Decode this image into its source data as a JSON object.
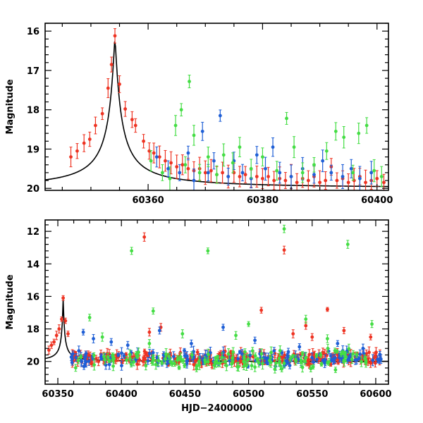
{
  "chart_data": [
    {
      "type": "scatter",
      "title": "",
      "xlabel": "",
      "ylabel": "Magnitude",
      "xlim": [
        60342,
        60402
      ],
      "ylim": [
        20.05,
        15.8
      ],
      "y_inverted": true,
      "xticks": [
        60360,
        60380,
        60400
      ],
      "yticks": [
        16,
        17,
        18,
        19,
        20
      ],
      "grid": false,
      "model_curve": {
        "name": "",
        "peak_x": 60354.2,
        "peak_y": 16.15,
        "baseline_y": 20.0,
        "color": "#000000"
      },
      "series": [
        {
          "name": "",
          "color": "#ee3322",
          "points": [
            {
              "x": 60346.5,
              "y": 19.2
            },
            {
              "x": 60347.6,
              "y": 19.05
            },
            {
              "x": 60348.8,
              "y": 18.85
            },
            {
              "x": 60349.8,
              "y": 18.75
            },
            {
              "x": 60350.8,
              "y": 18.4
            },
            {
              "x": 60352.0,
              "y": 18.1
            },
            {
              "x": 60353.0,
              "y": 17.45
            },
            {
              "x": 60353.6,
              "y": 16.85
            },
            {
              "x": 60354.2,
              "y": 16.12
            },
            {
              "x": 60355.0,
              "y": 17.35
            },
            {
              "x": 60356.0,
              "y": 17.98
            },
            {
              "x": 60357.2,
              "y": 18.25
            },
            {
              "x": 60357.8,
              "y": 18.4
            },
            {
              "x": 60359.2,
              "y": 18.8
            },
            {
              "x": 60360.2,
              "y": 19.05
            },
            {
              "x": 60361.0,
              "y": 19.1
            },
            {
              "x": 60362.0,
              "y": 19.2
            },
            {
              "x": 60363.0,
              "y": 19.3
            },
            {
              "x": 60364.0,
              "y": 19.35
            },
            {
              "x": 60365.0,
              "y": 19.45
            },
            {
              "x": 60366.0,
              "y": 19.4
            },
            {
              "x": 60367.0,
              "y": 19.5
            },
            {
              "x": 60368.0,
              "y": 19.55
            },
            {
              "x": 60369.0,
              "y": 19.5
            },
            {
              "x": 60370.0,
              "y": 19.6
            },
            {
              "x": 60371.0,
              "y": 19.55
            },
            {
              "x": 60372.0,
              "y": 19.65
            },
            {
              "x": 60373.0,
              "y": 19.6
            },
            {
              "x": 60374.0,
              "y": 19.7
            },
            {
              "x": 60375.0,
              "y": 19.6
            },
            {
              "x": 60376.0,
              "y": 19.7
            },
            {
              "x": 60377.0,
              "y": 19.65
            },
            {
              "x": 60378.0,
              "y": 19.75
            },
            {
              "x": 60379.0,
              "y": 19.7
            },
            {
              "x": 60380.0,
              "y": 19.75
            },
            {
              "x": 60381.0,
              "y": 19.7
            },
            {
              "x": 60382.0,
              "y": 19.8
            },
            {
              "x": 60383.0,
              "y": 19.75
            },
            {
              "x": 60384.0,
              "y": 19.8
            },
            {
              "x": 60385.0,
              "y": 19.7
            },
            {
              "x": 60386.0,
              "y": 19.85
            },
            {
              "x": 60387.0,
              "y": 19.75
            },
            {
              "x": 60388.0,
              "y": 19.8
            },
            {
              "x": 60389.0,
              "y": 19.7
            },
            {
              "x": 60390.0,
              "y": 19.85
            },
            {
              "x": 60391.0,
              "y": 19.8
            },
            {
              "x": 60392.0,
              "y": 19.45
            },
            {
              "x": 60393.0,
              "y": 19.8
            },
            {
              "x": 60394.0,
              "y": 19.75
            },
            {
              "x": 60395.0,
              "y": 19.85
            },
            {
              "x": 60396.0,
              "y": 19.8
            },
            {
              "x": 60397.0,
              "y": 19.7
            },
            {
              "x": 60398.0,
              "y": 19.85
            },
            {
              "x": 60399.0,
              "y": 19.8
            },
            {
              "x": 60400.0,
              "y": 19.75
            },
            {
              "x": 60401.2,
              "y": 19.85
            }
          ]
        },
        {
          "name": "",
          "color": "#1f5fd6",
          "points": [
            {
              "x": 60361.5,
              "y": 19.2
            },
            {
              "x": 60363.5,
              "y": 19.5
            },
            {
              "x": 60365.5,
              "y": 19.6
            },
            {
              "x": 60367.0,
              "y": 19.1
            },
            {
              "x": 60368.0,
              "y": 19.8
            },
            {
              "x": 60369.5,
              "y": 18.55
            },
            {
              "x": 60370.5,
              "y": 19.6
            },
            {
              "x": 60371.5,
              "y": 19.3
            },
            {
              "x": 60372.6,
              "y": 18.15
            },
            {
              "x": 60374.0,
              "y": 19.7
            },
            {
              "x": 60375.0,
              "y": 19.3
            },
            {
              "x": 60376.5,
              "y": 19.6
            },
            {
              "x": 60378.0,
              "y": 19.75
            },
            {
              "x": 60379.0,
              "y": 19.15
            },
            {
              "x": 60380.5,
              "y": 19.5
            },
            {
              "x": 60381.8,
              "y": 18.95
            },
            {
              "x": 60383.0,
              "y": 19.6
            },
            {
              "x": 60385.0,
              "y": 19.7
            },
            {
              "x": 60387.0,
              "y": 19.5
            },
            {
              "x": 60389.0,
              "y": 19.65
            },
            {
              "x": 60390.5,
              "y": 19.3
            },
            {
              "x": 60392.0,
              "y": 19.6
            },
            {
              "x": 60394.0,
              "y": 19.7
            },
            {
              "x": 60395.5,
              "y": 19.5
            },
            {
              "x": 60397.0,
              "y": 19.75
            },
            {
              "x": 60399.0,
              "y": 19.6
            }
          ]
        },
        {
          "name": "",
          "color": "#44dd44",
          "points": [
            {
              "x": 60360.5,
              "y": 19.3
            },
            {
              "x": 60362.5,
              "y": 19.6
            },
            {
              "x": 60363.8,
              "y": 19.75
            },
            {
              "x": 60364.8,
              "y": 18.4
            },
            {
              "x": 60365.8,
              "y": 18.0
            },
            {
              "x": 60366.5,
              "y": 19.4
            },
            {
              "x": 60367.2,
              "y": 17.28
            },
            {
              "x": 60368.0,
              "y": 18.65
            },
            {
              "x": 60369.0,
              "y": 19.6
            },
            {
              "x": 60370.5,
              "y": 19.2
            },
            {
              "x": 60372.0,
              "y": 19.65
            },
            {
              "x": 60373.2,
              "y": 19.15
            },
            {
              "x": 60374.8,
              "y": 19.35
            },
            {
              "x": 60376.0,
              "y": 18.95
            },
            {
              "x": 60378.0,
              "y": 19.5
            },
            {
              "x": 60380.0,
              "y": 19.2
            },
            {
              "x": 60382.5,
              "y": 19.55
            },
            {
              "x": 60384.2,
              "y": 18.22
            },
            {
              "x": 60385.5,
              "y": 18.95
            },
            {
              "x": 60387.0,
              "y": 19.6
            },
            {
              "x": 60389.0,
              "y": 19.4
            },
            {
              "x": 60391.2,
              "y": 19.05
            },
            {
              "x": 60392.8,
              "y": 18.55
            },
            {
              "x": 60394.2,
              "y": 18.7
            },
            {
              "x": 60395.8,
              "y": 19.6
            },
            {
              "x": 60396.8,
              "y": 18.6
            },
            {
              "x": 60398.2,
              "y": 18.4
            },
            {
              "x": 60399.5,
              "y": 19.55
            },
            {
              "x": 60400.8,
              "y": 19.7
            }
          ]
        }
      ]
    },
    {
      "type": "scatter",
      "title": "",
      "xlabel": "HJD−2400000",
      "ylabel": "Magnitude",
      "xlim": [
        60340,
        60610
      ],
      "ylim": [
        21.4,
        11.3
      ],
      "y_inverted": true,
      "xticks": [
        60350,
        60400,
        60450,
        60500,
        60550,
        60600
      ],
      "yticks": [
        12,
        14,
        16,
        18,
        20
      ],
      "grid": false,
      "model_curve": {
        "name": "",
        "peak_x": 60354.2,
        "peak_y": 16.15,
        "baseline_y": 20.0,
        "color": "#000000"
      },
      "series": [
        {
          "name": "",
          "color": "#ee3322",
          "baseline": {
            "x_start": 60360,
            "x_end": 60605,
            "y_center": 19.8,
            "y_spread": 0.45,
            "count": 260
          },
          "points": [
            {
              "x": 60343,
              "y": 19.3
            },
            {
              "x": 60345,
              "y": 19.0
            },
            {
              "x": 60347,
              "y": 18.8
            },
            {
              "x": 60349,
              "y": 18.4
            },
            {
              "x": 60351,
              "y": 18.0
            },
            {
              "x": 60353,
              "y": 17.4
            },
            {
              "x": 60354.2,
              "y": 16.1
            },
            {
              "x": 60356,
              "y": 17.5
            },
            {
              "x": 60358,
              "y": 18.3
            },
            {
              "x": 60418,
              "y": 12.35
            },
            {
              "x": 60422,
              "y": 18.2
            },
            {
              "x": 60431,
              "y": 17.9
            },
            {
              "x": 60510,
              "y": 16.85
            },
            {
              "x": 60528,
              "y": 13.15
            },
            {
              "x": 60535,
              "y": 18.3
            },
            {
              "x": 60545,
              "y": 17.8
            },
            {
              "x": 60550,
              "y": 18.5
            },
            {
              "x": 60562,
              "y": 16.8
            },
            {
              "x": 60575,
              "y": 18.1
            },
            {
              "x": 60596,
              "y": 18.5
            }
          ]
        },
        {
          "name": "",
          "color": "#1f5fd6",
          "baseline": {
            "x_start": 60360,
            "x_end": 60605,
            "y_center": 19.85,
            "y_spread": 0.55,
            "count": 150
          },
          "points": [
            {
              "x": 60370,
              "y": 18.2
            },
            {
              "x": 60378,
              "y": 18.6
            },
            {
              "x": 60392,
              "y": 18.8
            },
            {
              "x": 60405,
              "y": 19.0
            },
            {
              "x": 60430,
              "y": 18.1
            },
            {
              "x": 60455,
              "y": 18.9
            },
            {
              "x": 60480,
              "y": 17.9
            },
            {
              "x": 60505,
              "y": 18.7
            },
            {
              "x": 60540,
              "y": 19.1
            },
            {
              "x": 60570,
              "y": 18.9
            },
            {
              "x": 60590,
              "y": 19.2
            }
          ]
        },
        {
          "name": "",
          "color": "#44dd44",
          "baseline": {
            "x_start": 60360,
            "x_end": 60605,
            "y_center": 19.9,
            "y_spread": 0.75,
            "count": 130
          },
          "points": [
            {
              "x": 60375,
              "y": 17.3
            },
            {
              "x": 60385,
              "y": 18.5
            },
            {
              "x": 60408,
              "y": 13.2
            },
            {
              "x": 60422,
              "y": 18.9
            },
            {
              "x": 60425,
              "y": 16.9
            },
            {
              "x": 60448,
              "y": 18.3
            },
            {
              "x": 60468,
              "y": 13.2
            },
            {
              "x": 60490,
              "y": 18.4
            },
            {
              "x": 60500,
              "y": 17.7
            },
            {
              "x": 60528,
              "y": 11.85
            },
            {
              "x": 60545,
              "y": 17.4
            },
            {
              "x": 60562,
              "y": 18.6
            },
            {
              "x": 60578,
              "y": 12.8
            },
            {
              "x": 60597,
              "y": 17.7
            }
          ]
        }
      ]
    }
  ]
}
